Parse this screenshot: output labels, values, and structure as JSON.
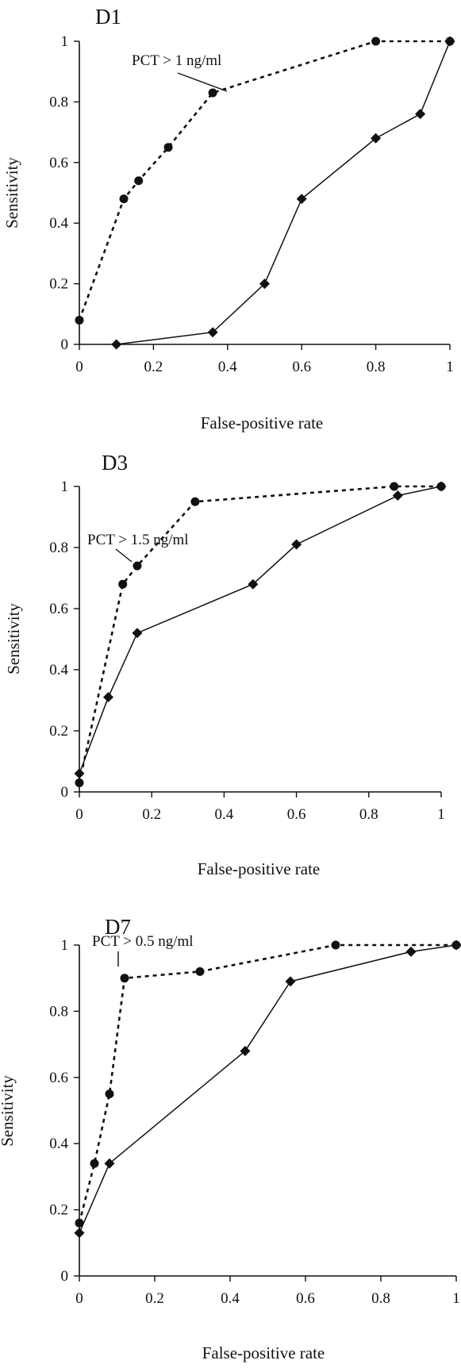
{
  "chart_data": [
    {
      "type": "line",
      "title": "D1",
      "xlabel": "False-positive rate",
      "ylabel": "Sensitivity",
      "xlim": [
        0,
        1
      ],
      "ylim": [
        0,
        1
      ],
      "xticks": [
        "0",
        "0.2",
        "0.4",
        "0.6",
        "0.8",
        "1"
      ],
      "yticks": [
        "0",
        "0.2",
        "0.4",
        "0.6",
        "0.8",
        "1"
      ],
      "grid": false,
      "annotation": {
        "text": "PCT > 1 ng/ml",
        "points_to": [
          0.36,
          0.83
        ]
      },
      "series": [
        {
          "style": "dashed",
          "marker": "circle",
          "x": [
            0,
            0.12,
            0.16,
            0.24,
            0.36,
            0.8,
            1.0
          ],
          "y": [
            0.08,
            0.48,
            0.54,
            0.65,
            0.83,
            1.0,
            1.0
          ]
        },
        {
          "style": "solid",
          "marker": "diamond",
          "x": [
            0.1,
            0.36,
            0.5,
            0.6,
            0.8,
            0.92,
            1.0
          ],
          "y": [
            0.0,
            0.04,
            0.2,
            0.48,
            0.68,
            0.76,
            1.0
          ]
        }
      ]
    },
    {
      "type": "line",
      "title": "D3",
      "xlabel": "False-positive rate",
      "ylabel": "Sensitivity",
      "xlim": [
        0,
        1
      ],
      "ylim": [
        0,
        1
      ],
      "xticks": [
        "0",
        "0.2",
        "0.4",
        "0.6",
        "0.8",
        "1"
      ],
      "yticks": [
        "0",
        "0.2",
        "0.4",
        "0.6",
        "0.8",
        "1"
      ],
      "grid": false,
      "annotation": {
        "text": "PCT > 1.5 ng/ml",
        "points_to": [
          0.16,
          0.74
        ]
      },
      "series": [
        {
          "style": "dashed",
          "marker": "circle",
          "x": [
            0,
            0.12,
            0.16,
            0.32,
            0.87,
            1.0
          ],
          "y": [
            0.03,
            0.68,
            0.74,
            0.95,
            1.0,
            1.0
          ]
        },
        {
          "style": "solid",
          "marker": "diamond",
          "x": [
            0,
            0.08,
            0.16,
            0.48,
            0.6,
            0.88,
            1.0
          ],
          "y": [
            0.06,
            0.31,
            0.52,
            0.68,
            0.81,
            0.97,
            1.0
          ]
        }
      ]
    },
    {
      "type": "line",
      "title": "D7",
      "xlabel": "False-positive rate",
      "ylabel": "Sensitivity",
      "xlim": [
        0,
        1
      ],
      "ylim": [
        0,
        1
      ],
      "xticks": [
        "0",
        "0.2",
        "0.4",
        "0.6",
        "0.8",
        "1"
      ],
      "yticks": [
        "0",
        "0.2",
        "0.4",
        "0.6",
        "0.8",
        "1"
      ],
      "grid": false,
      "annotation": {
        "text": "PCT > 0.5 ng/ml",
        "points_to": [
          0.12,
          0.9
        ]
      },
      "series": [
        {
          "style": "dashed",
          "marker": "circle",
          "x": [
            0,
            0.04,
            0.08,
            0.12,
            0.32,
            0.68,
            1.0
          ],
          "y": [
            0.16,
            0.34,
            0.55,
            0.9,
            0.92,
            1.0,
            1.0
          ]
        },
        {
          "style": "solid",
          "marker": "diamond",
          "x": [
            0,
            0.08,
            0.44,
            0.56,
            0.88,
            1.0
          ],
          "y": [
            0.13,
            0.34,
            0.68,
            0.89,
            0.98,
            1.0
          ]
        }
      ]
    }
  ]
}
